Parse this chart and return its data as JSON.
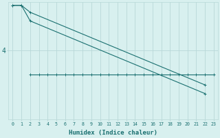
{
  "bg_color": "#d8f0ef",
  "line_color": "#1a7070",
  "grid_color": "#b8d8d8",
  "xlabel": "Humidex (Indice chaleur)",
  "xlabel_fontsize": 6.5,
  "xmin": -0.5,
  "xmax": 23.5,
  "ymin": 2.0,
  "ymax": 5.4,
  "ytick_val": 4,
  "line1_x": [
    0,
    1,
    2,
    22
  ],
  "line1_y": [
    5.3,
    5.3,
    5.1,
    3.0
  ],
  "line2_x": [
    0,
    1,
    2,
    22
  ],
  "line2_y": [
    5.3,
    5.3,
    4.85,
    2.75
  ],
  "line3_x": [
    2,
    3,
    4,
    5,
    6,
    7,
    8,
    9,
    10,
    11,
    12,
    13,
    14,
    15,
    16,
    17,
    18,
    19,
    20,
    21,
    22,
    23
  ],
  "line3_y": [
    3.3,
    3.3,
    3.3,
    3.3,
    3.3,
    3.3,
    3.3,
    3.3,
    3.3,
    3.3,
    3.3,
    3.3,
    3.3,
    3.3,
    3.3,
    3.3,
    3.3,
    3.3,
    3.3,
    3.3,
    3.3,
    3.3
  ],
  "marker_size": 2.5,
  "line_width": 0.8
}
